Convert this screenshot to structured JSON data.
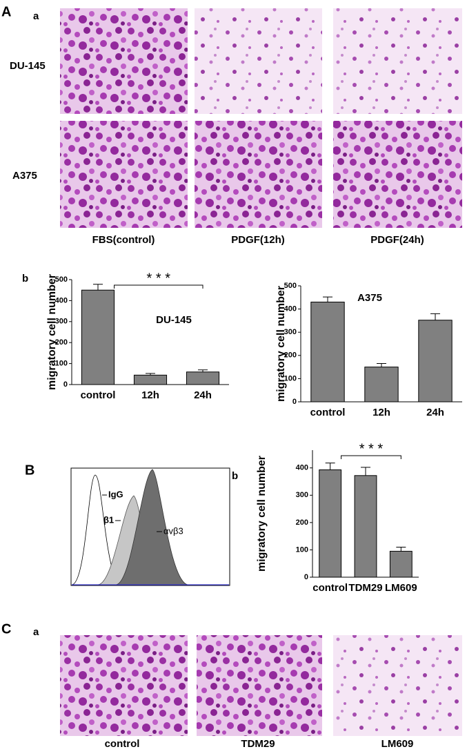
{
  "panel_a": {
    "label": "A",
    "sub_a": "a",
    "rows": [
      "DU-145",
      "A375"
    ],
    "columns": [
      "FBS(control)",
      "PDGF(12h)",
      "PDGF(24h)"
    ],
    "sub_b": "b"
  },
  "panel_b": {
    "label": "B",
    "sub_b": "b",
    "flow_labels": [
      "IgG",
      "β1",
      "αvβ3"
    ]
  },
  "panel_c": {
    "label": "C",
    "sub_a": "a",
    "columns": [
      "control",
      "TDM29",
      "LM609"
    ]
  },
  "chart_data": [
    {
      "type": "bar",
      "y_label": "migratory cell number",
      "annotation": "DU-145",
      "significance": "* * *",
      "categories": [
        "control",
        "12h",
        "24h"
      ],
      "values": [
        450,
        45,
        60
      ],
      "errors": [
        28,
        8,
        10
      ],
      "color": "#808080",
      "ylim": [
        0,
        500
      ],
      "yticks": [
        0,
        100,
        200,
        300,
        400,
        500
      ]
    },
    {
      "type": "bar",
      "y_label": "migratory cell number",
      "annotation": "A375",
      "categories": [
        "control",
        "12h",
        "24h"
      ],
      "values": [
        430,
        150,
        352
      ],
      "errors": [
        22,
        15,
        28
      ],
      "color": "#808080",
      "ylim": [
        0,
        500
      ],
      "yticks": [
        0,
        100,
        200,
        300,
        400,
        500
      ]
    },
    {
      "type": "bar",
      "y_label": "migratory cell number",
      "significance": "* * *",
      "categories": [
        "control",
        "TDM29",
        "LM609"
      ],
      "values": [
        393,
        372,
        95
      ],
      "errors": [
        25,
        30,
        15
      ],
      "color": "#808080",
      "ylim": [
        0,
        465
      ],
      "yticks": [
        0,
        100,
        200,
        300,
        400
      ]
    }
  ]
}
